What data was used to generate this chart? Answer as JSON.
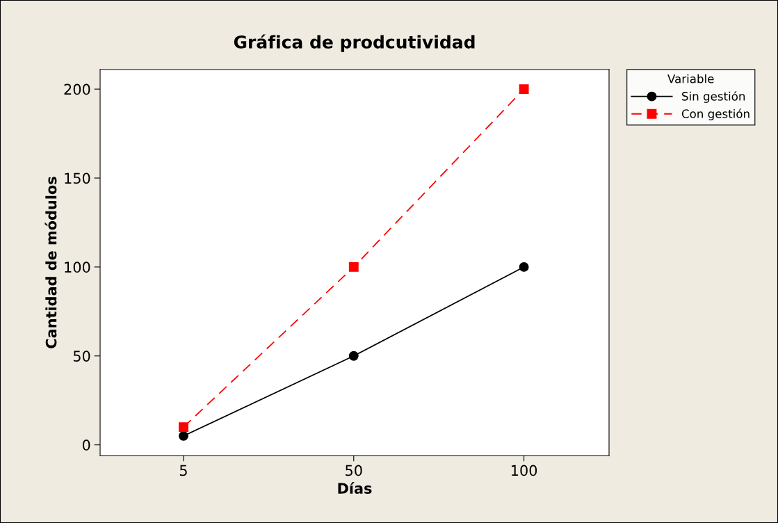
{
  "chart_data": {
    "type": "line",
    "title": "Gráfica de prodcutividad",
    "xlabel": "Días",
    "ylabel": "Cantidad de módulos",
    "categories": [
      "5",
      "50",
      "100"
    ],
    "series": [
      {
        "name": "Sin gestión",
        "color": "#000000",
        "values": [
          5,
          50,
          100
        ],
        "marker": "circle",
        "line_style": "solid"
      },
      {
        "name": "Con gestión",
        "color": "#ff0000",
        "values": [
          10,
          100,
          200
        ],
        "marker": "square",
        "line_style": "dashed"
      }
    ],
    "ylim": [
      -6,
      211
    ],
    "yticks": [
      0,
      50,
      100,
      150,
      200
    ],
    "grid": false,
    "legend": "top right",
    "legend_title": "Variable"
  }
}
